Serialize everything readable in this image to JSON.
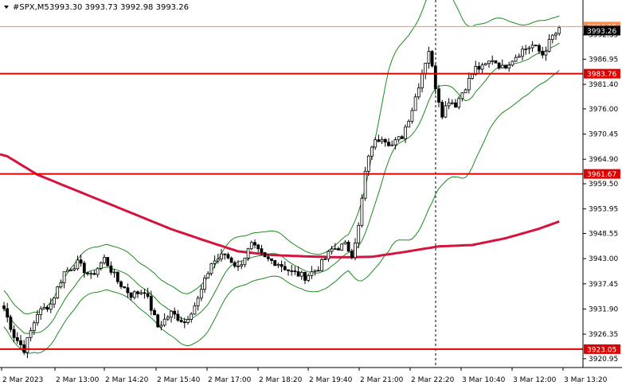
{
  "header": {
    "symbol": "#SPX,M5",
    "ohlc": "3993.30 3993.73 3992.98 3993.26"
  },
  "colors": {
    "background": "#ffffff",
    "candle": "#000000",
    "bollinger": "#1e8a1e",
    "moving_average": "#d4143c",
    "level_line": "#e00000",
    "ask_line": "#ff8c50",
    "price_tag_bg": "#000000",
    "level_tag_bg": "#e00000"
  },
  "price_tags": {
    "current": "3993.26",
    "ask": "3994.15"
  },
  "chart_data": {
    "type": "candlestick",
    "ylim": [
      3919,
      4000
    ],
    "y_ticks": [
      "3992.35",
      "3986.95",
      "3981.40",
      "3976.00",
      "3970.45",
      "3964.90",
      "3959.50",
      "3953.95",
      "3948.55",
      "3943.00",
      "3937.45",
      "3931.90",
      "3926.35",
      "3920.95"
    ],
    "x_ticks": [
      "2 Mar 2023",
      "2 Mar 13:00",
      "2 Mar 14:20",
      "2 Mar 15:40",
      "2 Mar 17:00",
      "2 Mar 18:20",
      "2 Mar 19:40",
      "2 Mar 21:00",
      "2 Mar 22:20",
      "3 Mar 10:40",
      "3 Mar 12:00",
      "3 Mar 13:20"
    ],
    "levels": [
      {
        "label": "3983.76",
        "value": 3983.76
      },
      {
        "label": "3961.67",
        "value": 3961.67
      },
      {
        "label": "3923.05",
        "value": 3923.05
      }
    ],
    "ask_value": 3994.15,
    "session_marker_index": 2,
    "close_anchors": [
      [
        0,
        3932
      ],
      [
        3,
        3926
      ],
      [
        6,
        3923
      ],
      [
        10,
        3931
      ],
      [
        14,
        3933
      ],
      [
        18,
        3940
      ],
      [
        22,
        3942
      ],
      [
        26,
        3939
      ],
      [
        30,
        3943
      ],
      [
        34,
        3938
      ],
      [
        38,
        3935
      ],
      [
        42,
        3936
      ],
      [
        46,
        3928
      ],
      [
        50,
        3931
      ],
      [
        54,
        3929
      ],
      [
        58,
        3934
      ],
      [
        62,
        3942
      ],
      [
        66,
        3944
      ],
      [
        70,
        3941
      ],
      [
        74,
        3946
      ],
      [
        78,
        3943
      ],
      [
        82,
        3942
      ],
      [
        86,
        3940
      ],
      [
        90,
        3939
      ],
      [
        94,
        3941
      ],
      [
        98,
        3945
      ],
      [
        102,
        3946
      ],
      [
        104,
        3944
      ],
      [
        106,
        3950
      ],
      [
        108,
        3962
      ],
      [
        110,
        3968
      ],
      [
        113,
        3970
      ],
      [
        116,
        3968
      ],
      [
        119,
        3970
      ],
      [
        122,
        3976
      ],
      [
        125,
        3984
      ],
      [
        127,
        3989
      ],
      [
        129,
        3981
      ],
      [
        131,
        3975
      ],
      [
        133,
        3978
      ],
      [
        135,
        3977
      ],
      [
        138,
        3981
      ],
      [
        141,
        3985
      ],
      [
        143,
        3985
      ],
      [
        146,
        3987
      ],
      [
        149,
        3985
      ],
      [
        152,
        3987
      ],
      [
        155,
        3989
      ],
      [
        158,
        3990
      ],
      [
        161,
        3988
      ],
      [
        164,
        3992
      ],
      [
        166,
        3993.26
      ]
    ],
    "ma_anchors": [
      [
        0,
        3966
      ],
      [
        10,
        3961.5
      ],
      [
        20,
        3958.5
      ],
      [
        30,
        3955.5
      ],
      [
        40,
        3952.5
      ],
      [
        50,
        3949.5
      ],
      [
        60,
        3947
      ],
      [
        70,
        3944.6
      ],
      [
        80,
        3943.8
      ],
      [
        90,
        3943.5
      ],
      [
        100,
        3943.3
      ],
      [
        110,
        3943.4
      ],
      [
        120,
        3944.5
      ],
      [
        130,
        3945.7
      ],
      [
        140,
        3946
      ],
      [
        150,
        3947.5
      ],
      [
        160,
        3949.6
      ],
      [
        166,
        3951.2
      ]
    ],
    "bollinger_width_anchors": [
      [
        0,
        4
      ],
      [
        20,
        5
      ],
      [
        40,
        5
      ],
      [
        60,
        6
      ],
      [
        80,
        5
      ],
      [
        95,
        4
      ],
      [
        103,
        4
      ],
      [
        108,
        10
      ],
      [
        115,
        20
      ],
      [
        122,
        23
      ],
      [
        128,
        24
      ],
      [
        135,
        19
      ],
      [
        145,
        12
      ],
      [
        155,
        8
      ],
      [
        166,
        6
      ]
    ]
  }
}
